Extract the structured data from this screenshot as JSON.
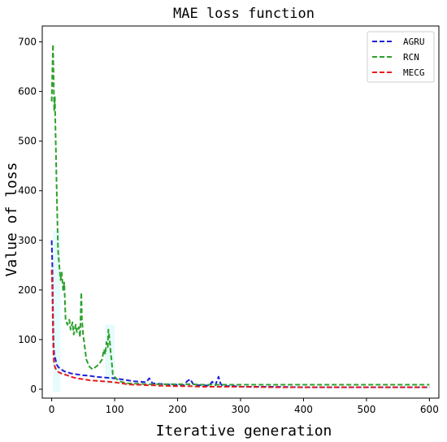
{
  "chart_data": {
    "type": "line",
    "title": "MAE loss function",
    "xlabel": "Iterative generation",
    "ylabel": "Value of loss",
    "xlim": [
      -15,
      615
    ],
    "ylim": [
      -18,
      732
    ],
    "xticks": [
      0,
      100,
      200,
      300,
      400,
      500,
      600
    ],
    "yticks": [
      0,
      100,
      200,
      300,
      400,
      500,
      600,
      700
    ],
    "grid": false,
    "legend_position": "top-right",
    "series": [
      {
        "name": "AGRU",
        "color": "#1f1fd6",
        "x": [
          0,
          1,
          2,
          3,
          4,
          6,
          8,
          10,
          15,
          20,
          25,
          30,
          40,
          50,
          60,
          70,
          80,
          90,
          100,
          110,
          120,
          130,
          140,
          150,
          155,
          160,
          170,
          180,
          190,
          200,
          210,
          215,
          220,
          225,
          230,
          240,
          250,
          255,
          260,
          265,
          268,
          270,
          275,
          280,
          290,
          300,
          350,
          400,
          450,
          500,
          550,
          600
        ],
        "y": [
          300,
          250,
          150,
          90,
          70,
          60,
          50,
          45,
          40,
          36,
          34,
          32,
          30,
          28,
          27,
          25,
          24,
          23,
          22,
          20,
          18,
          16,
          15,
          14,
          22,
          12,
          11,
          10,
          9,
          9,
          8,
          16,
          20,
          10,
          8,
          8,
          7,
          15,
          8,
          25,
          12,
          8,
          7,
          6,
          6,
          5,
          5,
          4,
          4,
          4,
          4,
          4
        ]
      },
      {
        "name": "RCN",
        "color": "#2ca02c",
        "x": [
          0,
          2,
          4,
          5,
          6,
          8,
          10,
          12,
          14,
          16,
          18,
          20,
          22,
          25,
          28,
          30,
          33,
          35,
          38,
          40,
          43,
          45,
          47,
          48,
          50,
          52,
          55,
          60,
          65,
          70,
          75,
          80,
          83,
          85,
          87,
          89,
          90,
          92,
          94,
          95,
          97,
          100,
          105,
          110,
          120,
          130,
          140,
          150,
          160,
          170,
          180,
          200,
          220,
          240,
          260,
          280,
          300,
          350,
          400,
          450,
          500,
          550,
          600
        ],
        "y": [
          580,
          695,
          560,
          590,
          520,
          400,
          280,
          250,
          220,
          235,
          200,
          215,
          140,
          130,
          140,
          120,
          135,
          110,
          130,
          115,
          125,
          105,
          195,
          140,
          110,
          90,
          60,
          45,
          40,
          45,
          50,
          60,
          80,
          70,
          95,
          85,
          120,
          100,
          70,
          60,
          30,
          25,
          18,
          15,
          12,
          11,
          11,
          10,
          10,
          10,
          10,
          10,
          10,
          9,
          9,
          9,
          9,
          9,
          9,
          9,
          9,
          9,
          9
        ]
      },
      {
        "name": "MECG",
        "color": "#e8191d",
        "x": [
          0,
          1,
          2,
          3,
          4,
          6,
          8,
          10,
          15,
          20,
          25,
          30,
          40,
          50,
          60,
          70,
          80,
          90,
          100,
          110,
          120,
          130,
          140,
          150,
          160,
          170,
          180,
          190,
          200,
          220,
          240,
          260,
          280,
          300,
          350,
          400,
          450,
          500,
          550,
          600
        ],
        "y": [
          240,
          200,
          110,
          65,
          50,
          42,
          38,
          35,
          32,
          30,
          28,
          25,
          22,
          20,
          18,
          17,
          16,
          15,
          14,
          12,
          10,
          9,
          9,
          8,
          8,
          7,
          7,
          6,
          6,
          6,
          5,
          5,
          5,
          5,
          4,
          4,
          4,
          4,
          4,
          4
        ]
      }
    ]
  }
}
